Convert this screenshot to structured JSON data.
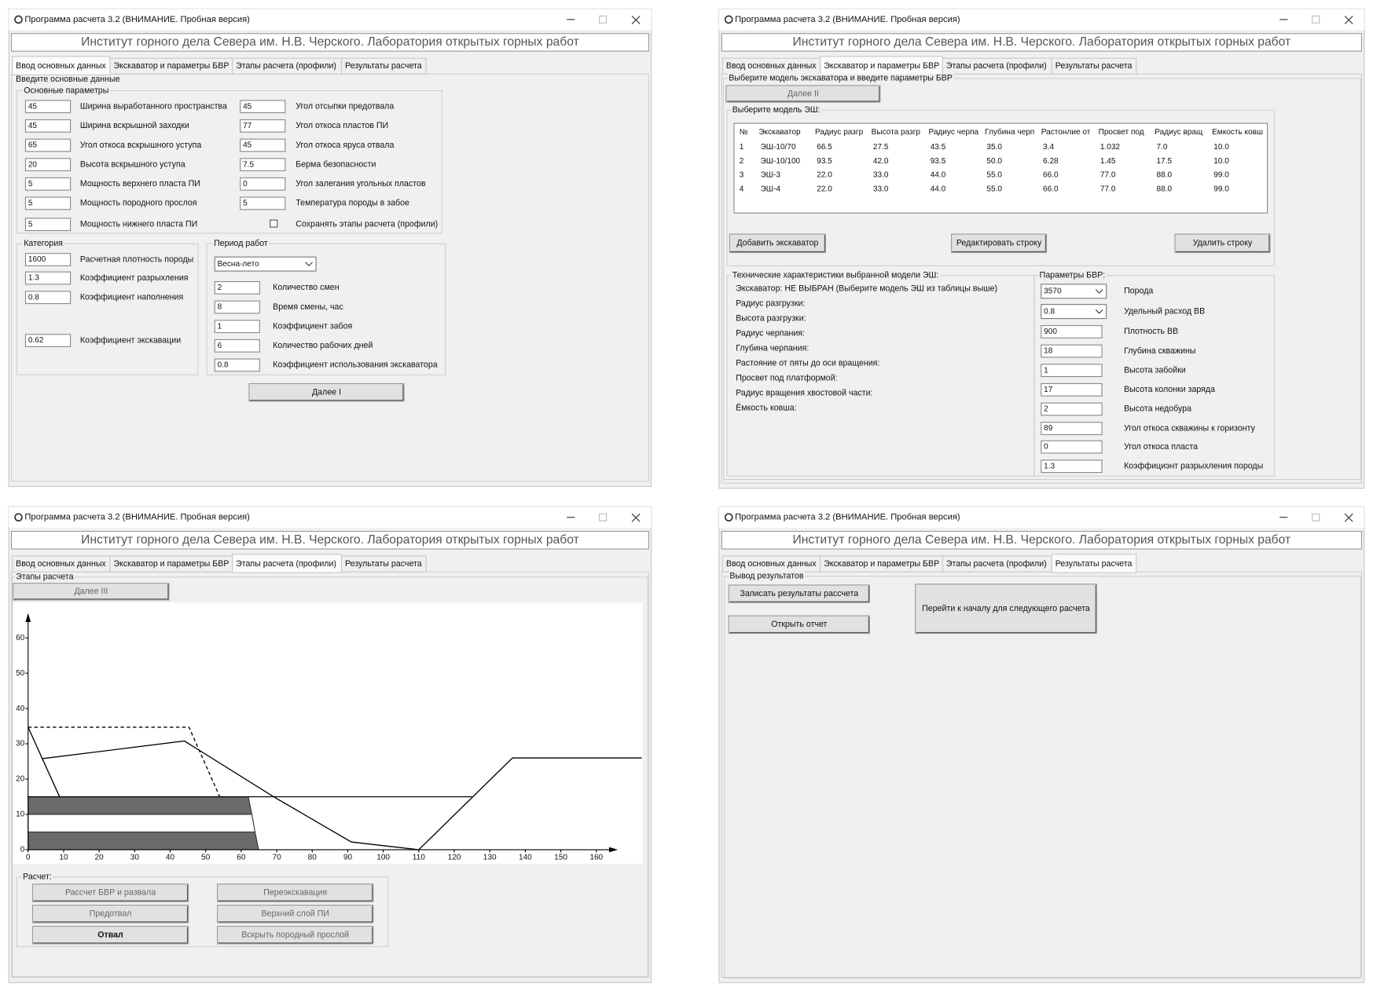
{
  "app": {
    "title": "Программа расчета 3.2  (ВНИМАНИЕ. Пробная версия)",
    "header": "Институт горного дела Севера им. Н.В. Черского. Лаборатория открытых горных работ",
    "tabs": [
      "Ввод основных данных",
      "Экскаватор и параметры БВР",
      "Этапы расчета (профили)",
      "Результаты расчета"
    ]
  },
  "windows": [
    {
      "section": "Введите основные данные",
      "main_group": {
        "title": "Основные параметры",
        "left": [
          {
            "value": "45",
            "label": "Ширина выработанного пространства"
          },
          {
            "value": "45",
            "label": "Ширина вскрышной заходки"
          },
          {
            "value": "65",
            "label": "Угол откоса вскрышного уступа"
          },
          {
            "value": "20",
            "label": "Высота вскрышного уступа"
          },
          {
            "value": "5",
            "label": "Мощность верхнего пласта ПИ"
          },
          {
            "value": "5",
            "label": "Мощность породного прослоя"
          },
          {
            "value": "5",
            "label": "Мощность нижнего пласта ПИ"
          }
        ],
        "right": [
          {
            "value": "45",
            "label": "Угол отсыпки предотвала"
          },
          {
            "value": "77",
            "label": "Угол откоса пластов ПИ"
          },
          {
            "value": "45",
            "label": "Угол откоса яруса отвала"
          },
          {
            "value": "7.5",
            "label": "Берма безопасности"
          },
          {
            "value": "0",
            "label": "Угол залегания угольных пластов"
          },
          {
            "value": "5",
            "label": "Температура породы в забое"
          }
        ],
        "checkbox": "Сохранять этапы расчета (профили)"
      },
      "category_group": {
        "title": "Категория",
        "fields": [
          {
            "value": "1600",
            "label": "Расчетная плотность породы"
          },
          {
            "value": "1.3",
            "label": "Коэффициент разрыхления"
          },
          {
            "value": "0.8",
            "label": "Коэффициент наполнения"
          },
          {
            "value": "0.62",
            "label": "Коэффициент экскавации"
          }
        ]
      },
      "period_group": {
        "title": "Период работ",
        "select": "Весна-лето",
        "fields": [
          {
            "value": "2",
            "label": "Количество смен"
          },
          {
            "value": "8",
            "label": "Время смены, час"
          },
          {
            "value": "1",
            "label": "Коэффициент забоя"
          },
          {
            "value": "6",
            "label": "Количество рабочих дней"
          },
          {
            "value": "0.8",
            "label": "Коэффициент использования экскаватора"
          }
        ]
      },
      "button": "Далее I"
    },
    {
      "section": "Выберите модель экскаватора и введите параметры БВР",
      "button": "Далее II",
      "model_group": {
        "title": "Выберите модель ЭШ:",
        "table": {
          "columns": [
            "№",
            "Экскаватор",
            "Радиус разгр",
            "Высота разгр",
            "Радиус черпа",
            "Глубина черп",
            "Растонлие от",
            "Просвет под",
            "Радиус вращ",
            "Емкость ковш"
          ],
          "rows": [
            [
              "1",
              "ЭШ-10/70",
              "66.5",
              "27.5",
              "43.5",
              "35.0",
              "3.4",
              "1.032",
              "7.0",
              "10.0"
            ],
            [
              "2",
              "ЭШ-10/100",
              "93.5",
              "42.0",
              "93.5",
              "50.0",
              "6.28",
              "1.45",
              "17.5",
              "10.0"
            ],
            [
              "3",
              "ЭШ-3",
              "22.0",
              "33.0",
              "44.0",
              "55.0",
              "66.0",
              "77.0",
              "88.0",
              "99.0"
            ],
            [
              "4",
              "ЭШ-4",
              "22.0",
              "33.0",
              "44.0",
              "55.0",
              "66.0",
              "77.0",
              "88.0",
              "99.0"
            ]
          ]
        },
        "buttons": [
          "Добавить экскаватор",
          "Редактировать строку",
          "Удалить строку"
        ]
      },
      "tech_group": {
        "title": "Технические характеристики выбранной модели ЭШ:",
        "lines": [
          "Экскаватор: НЕ ВЫБРАН (Выберите модель ЭШ из таблицы выше)",
          "Радиус разгрузки:",
          "Высота разгрузки:",
          "Радиус черпания:",
          "Глубина черпания:",
          "Растояние от пяты до оси вращения:",
          "Просвет под платформой:",
          "Радиус вращения хвостовой части:",
          "Ёмкость ковша:"
        ]
      },
      "bvr_group": {
        "title": "Параметры БВР:",
        "fields": [
          {
            "value": "3570",
            "label": "Порода"
          },
          {
            "value": "0.8",
            "label": "Удельный расход ВВ"
          },
          {
            "value": "900",
            "label": "Плотность ВВ"
          },
          {
            "value": "18",
            "label": "Глубина скважины"
          },
          {
            "value": "1",
            "label": "Высота забойки"
          },
          {
            "value": "17",
            "label": "Высота колонки заряда"
          },
          {
            "value": "2",
            "label": "Высота недобура"
          },
          {
            "value": "89",
            "label": "Угол откоса скважины к горизонту"
          },
          {
            "value": "0",
            "label": "Угол откоса пласта"
          },
          {
            "value": "1.3",
            "label": "Коэффициэнт разрыхления породы"
          }
        ]
      }
    },
    {
      "section": "Этапы расчета",
      "button": "Далее III",
      "calc_group": {
        "title": "Расчет:",
        "buttons": [
          "Рассчет БВР и развала",
          "Переэкскавация",
          "Предотвал",
          "Верхний слой ПИ",
          "Отвал",
          "Вскрыть породный прослой"
        ]
      }
    },
    {
      "section": "Вывод результатов",
      "buttons": [
        "Записать результаты рассчета",
        "Открыть отчет",
        "Перейти к началу для следующего расчета"
      ]
    }
  ],
  "chart_data": {
    "type": "line",
    "xlim": [
      -4.2,
      173
    ],
    "ylim": [
      -4,
      70
    ],
    "xticks": [
      0,
      10,
      20,
      30,
      40,
      50,
      60,
      70,
      80,
      90,
      100,
      110,
      120,
      130,
      140,
      150,
      160
    ],
    "yticks": [
      0,
      10,
      20,
      30,
      40,
      50,
      60
    ],
    "layers": [
      {
        "x": [
          0,
          62,
          63,
          0
        ],
        "values": [
          15,
          15,
          10,
          10
        ],
        "color": "#6b6b6b"
      },
      {
        "x": [
          0,
          63,
          63.9,
          0
        ],
        "values": [
          10,
          10,
          5,
          5
        ],
        "color": "#ffffff"
      },
      {
        "x": [
          0,
          63.9,
          64.9,
          0
        ],
        "values": [
          5,
          5,
          0,
          0
        ],
        "color": "#6b6b6b"
      }
    ],
    "series": [
      {
        "x": [
          0,
          8.9
        ],
        "values": [
          34.7,
          14.9
        ],
        "color": "#000000"
      },
      {
        "x": [
          4,
          44,
          69.3,
          91,
          110,
          136.4,
          172.8
        ],
        "values": [
          25.8,
          30.8,
          14.9,
          2.2,
          0,
          26,
          26
        ],
        "color": "#000000"
      },
      {
        "x": [
          0,
          45.3,
          54
        ],
        "values": [
          34.7,
          34.7,
          14.9
        ],
        "color": "#000000",
        "dash": true
      },
      {
        "x": [
          0,
          125
        ],
        "values": [
          15,
          15
        ],
        "color": "#000000"
      }
    ]
  }
}
